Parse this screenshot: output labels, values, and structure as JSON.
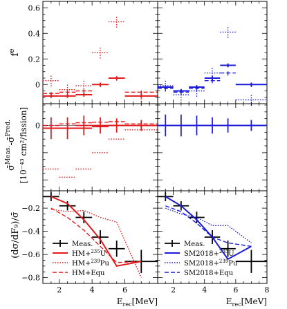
{
  "figure": {
    "y_labels": {
      "f": "f",
      "f_sup": "e",
      "sigma_main": "σ̄",
      "sigma_sup": "Meas.",
      "sigma_mid": "-σ̄",
      "sigma_sup2": "Pred.",
      "sigma_units": "[10⁻⁴³ cm²/fission]",
      "slope": "(dσ/dF₉)/σ̄"
    },
    "x_label_main": "E",
    "x_label_sub": "rec",
    "x_label_units": "[MeV]",
    "legend_left": [
      {
        "label": "Meas."
      },
      {
        "label": "HM+",
        "sup": "235",
        "tail": "U"
      },
      {
        "label": "HM+",
        "sup": "239",
        "tail": "Pu"
      },
      {
        "label": "HM+Equ"
      }
    ],
    "legend_right": [
      {
        "label": "Meas."
      },
      {
        "label": "SM2018+",
        "sup": "235",
        "tail": "U"
      },
      {
        "label": "SM2018+",
        "sup": "239",
        "tail": "Pu"
      },
      {
        "label": "SM2018+Equ"
      }
    ],
    "colors": {
      "hm": "#e31a1c",
      "sm": "#1a1adb",
      "meas": "#000000"
    }
  },
  "chart_data": [
    {
      "type": "scatter",
      "panel": "top-left",
      "ylabel": "f^e",
      "xlim": [
        1,
        8
      ],
      "ylim": [
        -0.15,
        0.65
      ],
      "yticks": [
        0,
        0.2,
        0.4,
        0.6
      ],
      "bins": [
        [
          1,
          2
        ],
        [
          2,
          3
        ],
        [
          3,
          4
        ],
        [
          4,
          5
        ],
        [
          5,
          6
        ],
        [
          6,
          8
        ]
      ],
      "series": [
        {
          "name": "HM+235U",
          "style": "solid",
          "values": [
            -0.09,
            -0.09,
            -0.08,
            0.0,
            0.05,
            -0.09
          ]
        },
        {
          "name": "HM+239Pu",
          "style": "dotted",
          "values": [
            0.03,
            -0.04,
            -0.01,
            0.25,
            0.49,
            -0.09
          ]
        },
        {
          "name": "HM+Equ",
          "style": "dashed",
          "values": [
            -0.07,
            -0.06,
            -0.05,
            0.0,
            0.05,
            -0.06
          ]
        }
      ]
    },
    {
      "type": "scatter",
      "panel": "top-right",
      "ylabel": "f^e",
      "xlim": [
        1,
        8
      ],
      "ylim": [
        -0.15,
        0.65
      ],
      "bins": [
        [
          1,
          2
        ],
        [
          2,
          3
        ],
        [
          3,
          4
        ],
        [
          4,
          5
        ],
        [
          5,
          6
        ],
        [
          6,
          8
        ]
      ],
      "series": [
        {
          "name": "SM2018+235U",
          "style": "solid",
          "values": [
            -0.02,
            -0.05,
            -0.02,
            0.05,
            0.15,
            0.0
          ]
        },
        {
          "name": "SM2018+239Pu",
          "style": "dotted",
          "values": [
            -0.01,
            -0.08,
            -0.05,
            0.09,
            0.41,
            -0.12
          ]
        },
        {
          "name": "SM2018+Equ",
          "style": "dashed",
          "values": [
            -0.03,
            -0.06,
            -0.03,
            0.03,
            0.09,
            0.0
          ]
        }
      ]
    },
    {
      "type": "scatter",
      "panel": "middle-left",
      "ylabel": "σ̄Meas.-σ̄Pred. [10⁻⁴³ cm²/fission]",
      "xlim": [
        1,
        8
      ],
      "ylim": [
        -0.12,
        0.04
      ],
      "bins": [
        [
          1,
          2
        ],
        [
          2,
          3
        ],
        [
          3,
          4
        ],
        [
          4,
          5
        ],
        [
          5,
          6
        ],
        [
          6,
          8
        ]
      ],
      "meas": {
        "values": [
          -0.005,
          -0.005,
          0.0,
          0.0,
          0.0,
          0.0
        ],
        "yerr": [
          0.02,
          0.02,
          0.018,
          0.015,
          0.013,
          0.01
        ]
      },
      "series": [
        {
          "name": "HM+235U",
          "style": "solid",
          "values": [
            -0.005,
            -0.005,
            -0.005,
            -0.002,
            0.0,
            0.0
          ]
        },
        {
          "name": "HM+239Pu",
          "style": "dotted",
          "values": [
            -0.08,
            -0.095,
            -0.08,
            -0.05,
            -0.025,
            -0.008
          ]
        },
        {
          "name": "HM+Equ",
          "style": "dashed",
          "values": [
            0.0,
            0.003,
            0.005,
            0.006,
            0.007,
            0.003
          ]
        }
      ]
    },
    {
      "type": "scatter",
      "panel": "middle-right",
      "xlim": [
        1,
        8
      ],
      "ylim": [
        -0.12,
        0.04
      ],
      "bins": [
        [
          1,
          2
        ],
        [
          2,
          3
        ],
        [
          3,
          4
        ],
        [
          4,
          5
        ],
        [
          5,
          6
        ],
        [
          6,
          8
        ]
      ],
      "meas": {
        "values": [
          0.0,
          0.0,
          0.0,
          0.0,
          0.0,
          0.0
        ],
        "yerr": [
          0.02,
          0.02,
          0.018,
          0.015,
          0.013,
          0.01
        ]
      },
      "series": [
        {
          "name": "SM2018+235U",
          "style": "solid",
          "values": [
            0.0,
            0.0,
            0.0,
            0.0,
            0.0,
            0.0
          ]
        }
      ]
    },
    {
      "type": "line",
      "panel": "bottom-left",
      "ylabel": "(dσ/dF9)/σ̄",
      "xlabel": "Erec[MeV]",
      "xlim": [
        1,
        8
      ],
      "ylim": [
        -0.85,
        -0.05
      ],
      "xticks": [
        2,
        4,
        6
      ],
      "yticks": [
        -0.8,
        -0.6,
        -0.4,
        -0.2
      ],
      "meas": {
        "x": [
          1.5,
          2.5,
          3.5,
          4.5,
          5.5,
          7.0
        ],
        "xerr": [
          0.5,
          0.5,
          0.5,
          0.5,
          0.5,
          1.0
        ],
        "y": [
          -0.1,
          -0.18,
          -0.28,
          -0.45,
          -0.55,
          -0.66
        ],
        "yerr": [
          0.04,
          0.04,
          0.05,
          0.06,
          0.07,
          0.1
        ]
      },
      "series": [
        {
          "name": "HM+235U",
          "style": "solid",
          "x": [
            1.5,
            2.5,
            3.5,
            4.5,
            5.5,
            7.0
          ],
          "y": [
            -0.1,
            -0.16,
            -0.3,
            -0.47,
            -0.7,
            -0.66
          ]
        },
        {
          "name": "HM+239Pu",
          "style": "dotted",
          "x": [
            1.5,
            2.5,
            3.5,
            4.5,
            5.5,
            7.0
          ],
          "y": [
            -0.21,
            -0.23,
            -0.22,
            -0.28,
            -0.32,
            -0.8
          ]
        },
        {
          "name": "HM+Equ",
          "style": "dashed",
          "x": [
            1.5,
            2.5,
            3.5,
            4.5,
            5.5,
            7.0
          ],
          "y": [
            -0.2,
            -0.28,
            -0.39,
            -0.53,
            -0.67,
            -0.66
          ]
        }
      ]
    },
    {
      "type": "line",
      "panel": "bottom-right",
      "xlabel": "Erec[MeV]",
      "xlim": [
        1,
        8
      ],
      "ylim": [
        -0.85,
        -0.05
      ],
      "xticks": [
        2,
        4,
        6,
        8
      ],
      "meas": {
        "x": [
          1.5,
          2.5,
          3.5,
          4.5,
          5.5,
          7.0
        ],
        "xerr": [
          0.5,
          0.5,
          0.5,
          0.5,
          0.5,
          1.0
        ],
        "y": [
          -0.1,
          -0.18,
          -0.28,
          -0.45,
          -0.55,
          -0.66
        ],
        "yerr": [
          0.04,
          0.04,
          0.05,
          0.06,
          0.07,
          0.1
        ]
      },
      "series": [
        {
          "name": "SM2018+235U",
          "style": "solid",
          "x": [
            1.5,
            2.5,
            3.5,
            4.5,
            5.5,
            7.0
          ],
          "y": [
            -0.1,
            -0.18,
            -0.3,
            -0.45,
            -0.64,
            -0.53
          ]
        },
        {
          "name": "SM2018+239Pu",
          "style": "dotted",
          "x": [
            1.5,
            2.5,
            3.5,
            4.5,
            5.5,
            7.0
          ],
          "y": [
            -0.2,
            -0.25,
            -0.28,
            -0.35,
            -0.35,
            -0.5
          ]
        },
        {
          "name": "SM2018+Equ",
          "style": "dashed",
          "x": [
            1.5,
            2.5,
            3.5,
            4.5,
            5.5,
            7.0
          ],
          "y": [
            -0.18,
            -0.23,
            -0.33,
            -0.45,
            -0.5,
            -0.53
          ]
        }
      ]
    }
  ]
}
